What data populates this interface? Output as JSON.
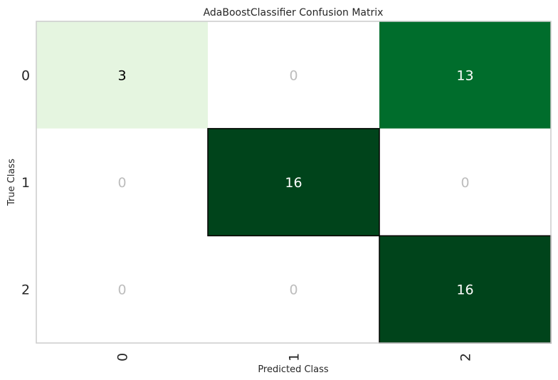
{
  "chart_data": {
    "type": "heatmap",
    "title": "AdaBoostClassifier Confusion Matrix",
    "xlabel": "Predicted Class",
    "ylabel": "True Class",
    "x_categories": [
      "0",
      "1",
      "2"
    ],
    "y_categories": [
      "0",
      "1",
      "2"
    ],
    "values": [
      [
        3,
        0,
        13
      ],
      [
        0,
        16,
        0
      ],
      [
        0,
        0,
        16
      ]
    ],
    "colormap": "Greens",
    "zero_color": "#ffffff",
    "zero_text_color": "#bdbdbd",
    "light_text_color": "#ffffff",
    "dark_text_color": "#000000",
    "color_scale": {
      "low": "#e5f5e0",
      "mid": "#006d2c",
      "high": "#00441b"
    },
    "highlight_diagonal_border": "#000000",
    "grid": false
  }
}
